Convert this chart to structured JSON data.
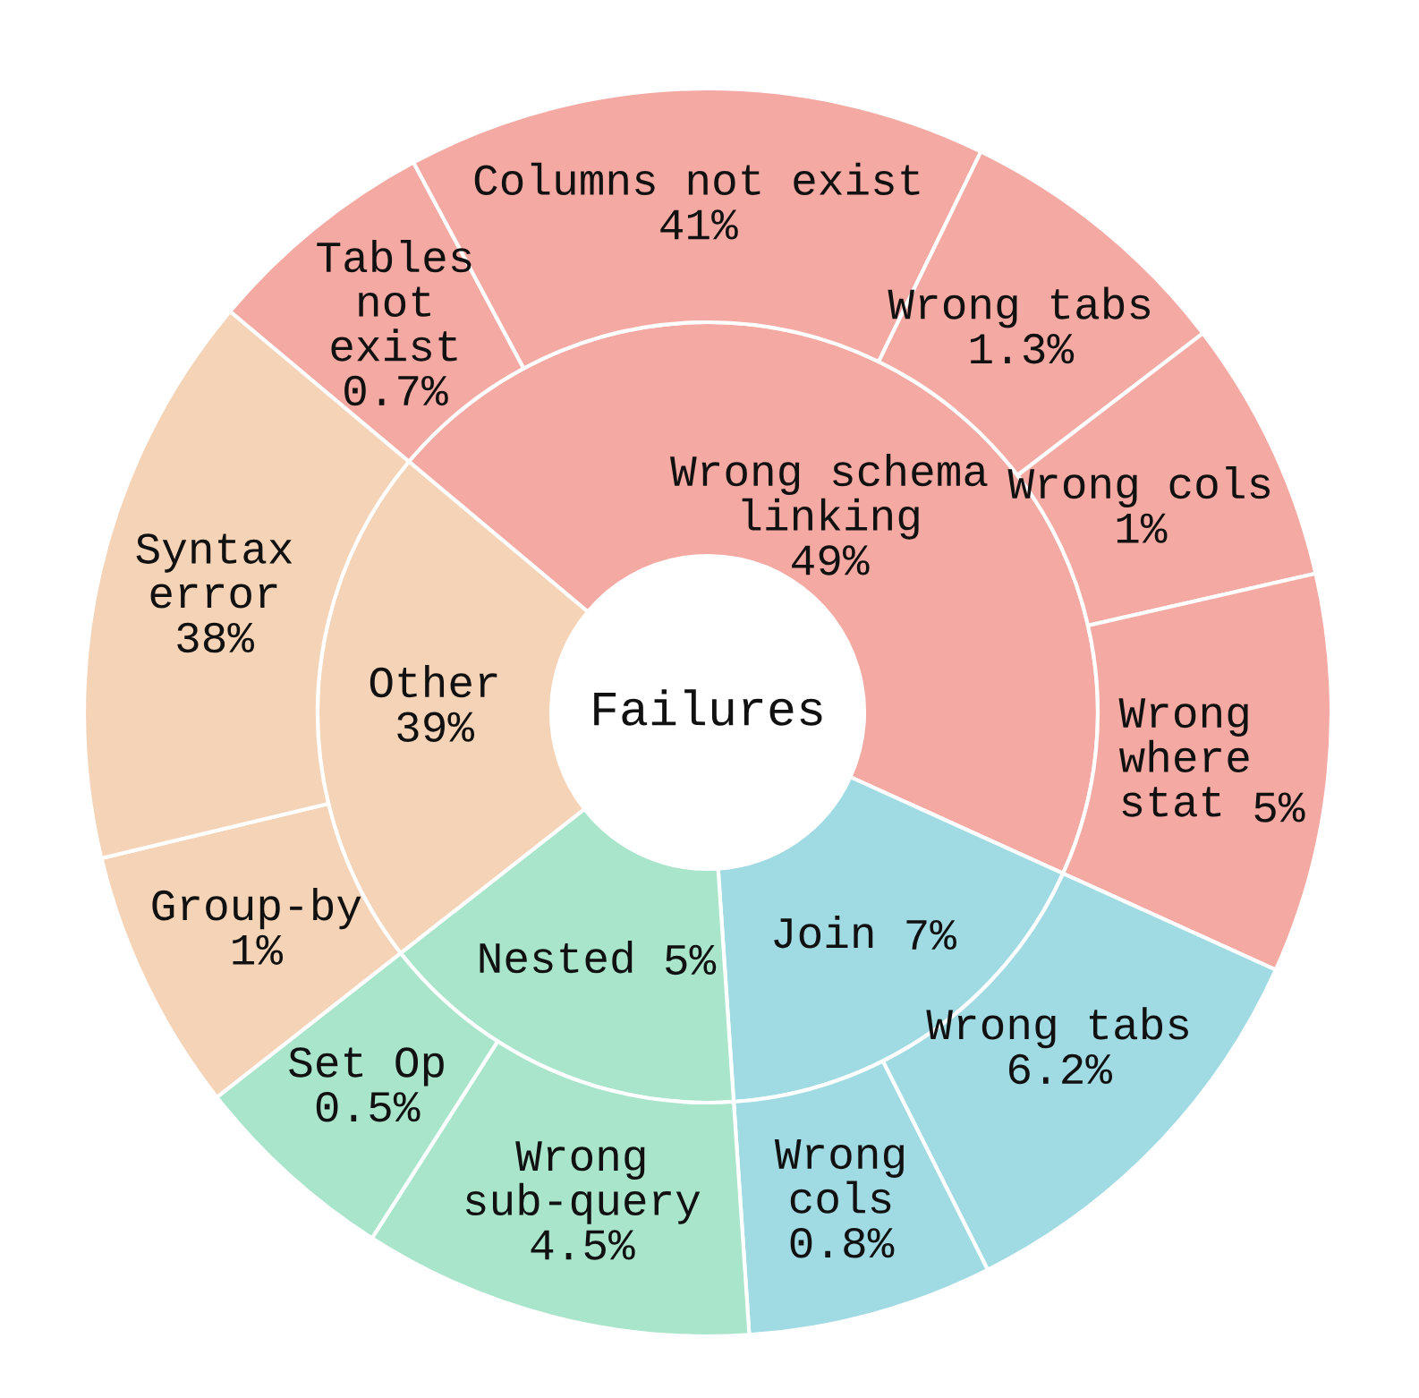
{
  "chart_data": [
    {
      "type": "other",
      "title": "Failures",
      "categories": [
        "Wrong schema\nlinking",
        "Join",
        "Nested",
        "Other"
      ],
      "values": [
        49,
        7,
        5,
        39
      ],
      "value_labels": [
        "49%",
        "7%",
        "5%",
        "39%"
      ],
      "colors": [
        "#f4a9a3",
        "#a0dae3",
        "#a9e5cb",
        "#f5d3b7"
      ]
    },
    {
      "type": "other",
      "categories": [
        "Tables\nnot\nexist",
        "Columns not exist",
        "Wrong tabs",
        "Wrong cols",
        "Wrong\nwhere\nstat",
        "Wrong tabs",
        "Wrong\ncols",
        "Wrong\nsub-query",
        "Set Op",
        "Group-by",
        "Syntax\nerror"
      ],
      "values": [
        0.7,
        41,
        1.3,
        1,
        5,
        6.2,
        0.8,
        4.5,
        0.5,
        1,
        38
      ],
      "value_labels": [
        "0.7%",
        "41%",
        "1.3%",
        "1%",
        "5%",
        "6.2%",
        "0.8%",
        "4.5%",
        "0.5%",
        "1%",
        "38%"
      ],
      "colors": [
        "#f4a9a3",
        "#f4a9a3",
        "#f4a9a3",
        "#f4a9a3",
        "#f4a9a3",
        "#a0dae3",
        "#a0dae3",
        "#a9e5cb",
        "#a9e5cb",
        "#f5d3b7",
        "#f5d3b7"
      ]
    }
  ]
}
